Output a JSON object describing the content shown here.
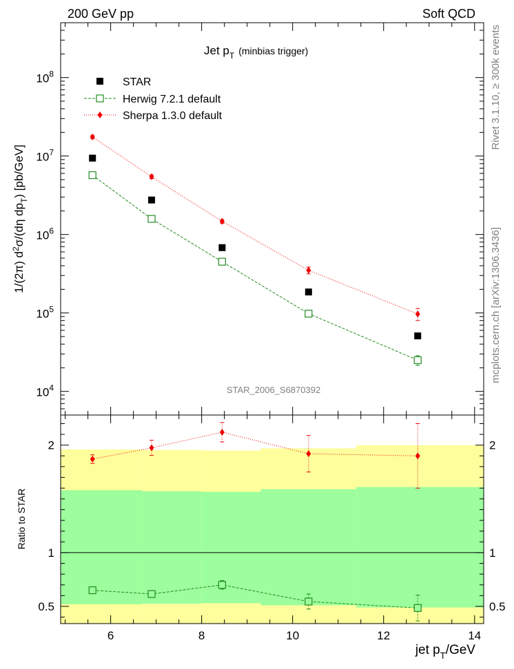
{
  "header": {
    "left": "200 GeV pp",
    "right": "Soft QCD"
  },
  "side_text": {
    "top": "Rivet 3.1.10, ≥ 300k events",
    "bottom": "mcplots.cern.ch [arXiv:1306.3436]"
  },
  "chart_data": {
    "type": "scatter",
    "title": "Jet p_T (minbias trigger)",
    "title_main": "Jet p",
    "title_sub": "T",
    "title_note": "(minbias trigger)",
    "analysis_id": "STAR_2006_S6870392",
    "xlabel": "jet p_T/GeV",
    "xlabel_main": "jet p",
    "xlabel_sub": "T",
    "xlabel_unit": "/GeV",
    "ylabel": "1/(2π) d²σ/(dη dp_T) [pb/GeV]",
    "ratio_ylabel": "Ratio to STAR",
    "xlim": [
      4.9,
      14.2
    ],
    "ylim": [
      5000,
      500000000
    ],
    "ratio_ylim": [
      0.34,
      2.28
    ],
    "xticks": [
      6,
      8,
      10,
      12,
      14
    ],
    "yticks": [
      {
        "exp": "4",
        "value": 10000
      },
      {
        "exp": "5",
        "value": 100000
      },
      {
        "exp": "6",
        "value": 1000000
      },
      {
        "exp": "7",
        "value": 10000000
      },
      {
        "exp": "8",
        "value": 100000000
      }
    ],
    "ratio_yticks": [
      {
        "label": "0.5",
        "value": 0.5
      },
      {
        "label": "1",
        "value": 1
      },
      {
        "label": "2",
        "value": 2
      }
    ],
    "bins": [
      4.9,
      6.7,
      8.0,
      9.3,
      11.4,
      14.2
    ],
    "band_inner": [
      [
        0.52,
        1.58
      ],
      [
        0.525,
        1.57
      ],
      [
        0.53,
        1.565
      ],
      [
        0.51,
        1.59
      ],
      [
        0.49,
        1.61
      ]
    ],
    "band_outer": [
      [
        0.34,
        1.96
      ],
      [
        0.34,
        1.955
      ],
      [
        0.34,
        1.95
      ],
      [
        0.34,
        1.97
      ],
      [
        0.34,
        2.0
      ]
    ],
    "colors": {
      "star": "#000000",
      "herwig": "#228b22",
      "sherpa": "#ee0000",
      "band_inner": "#9cfe9c",
      "band_outer": "#fefe9c"
    },
    "series": [
      {
        "name": "STAR",
        "x": [
          5.6,
          6.9,
          8.45,
          10.35,
          12.75
        ],
        "y": [
          9400000,
          2750000,
          680000,
          185000,
          51000
        ],
        "marker": "filled-square"
      },
      {
        "name": "Herwig 7.2.1 default",
        "x": [
          5.6,
          6.9,
          8.45,
          10.35,
          12.75
        ],
        "y": [
          5700000,
          1580000,
          450000,
          98000,
          25000
        ],
        "yerr": [
          200000,
          60000,
          20000,
          6000,
          3500
        ],
        "ratio": [
          0.65,
          0.615,
          0.7,
          0.545,
          0.485
        ],
        "ratio_err": [
          0.02,
          0.02,
          0.04,
          0.07,
          0.12
        ],
        "marker": "open-square"
      },
      {
        "name": "Sherpa 1.3.0 default",
        "x": [
          5.6,
          6.9,
          8.45,
          10.35,
          12.75
        ],
        "y": [
          17500000,
          5450000,
          1470000,
          350000,
          97000
        ],
        "yerr": [
          800000,
          300000,
          80000,
          35000,
          17000
        ],
        "ratio": [
          1.87,
          1.975,
          2.12,
          1.92,
          1.9
        ],
        "ratio_err": [
          0.04,
          0.07,
          0.09,
          0.17,
          0.3
        ],
        "marker": "filled-diamond"
      }
    ]
  }
}
